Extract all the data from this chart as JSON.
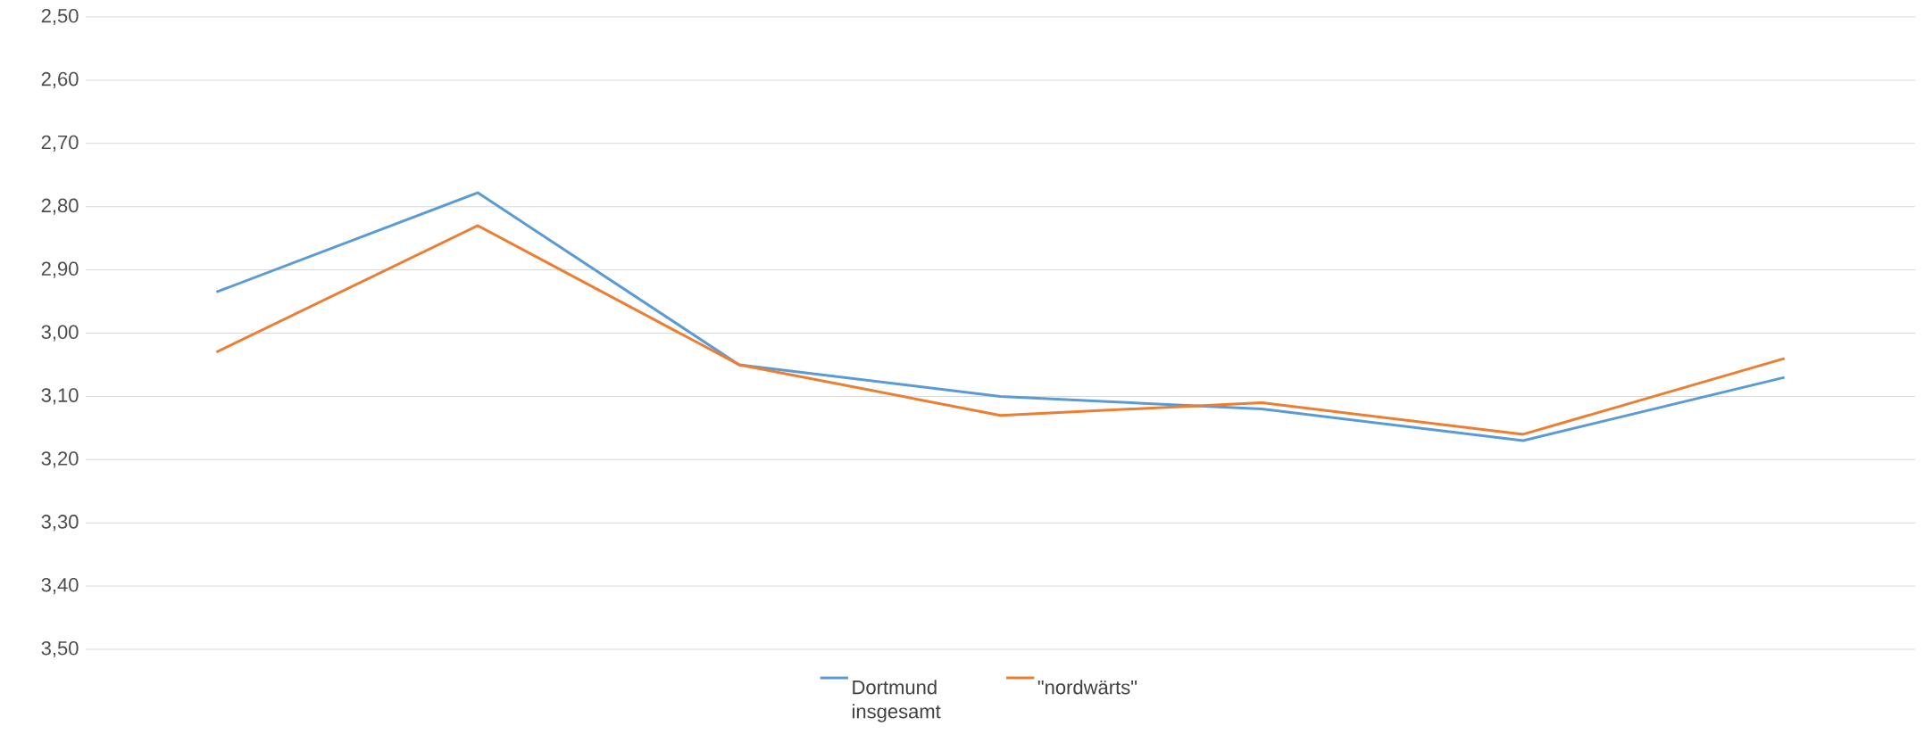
{
  "chart_data": {
    "type": "line",
    "categories": [
      null,
      null,
      null,
      null,
      null,
      null,
      null
    ],
    "series": [
      {
        "name": "Dortmund insgesamt",
        "color": "#5b9bd5",
        "values": [
          2.935,
          2.778,
          3.05,
          3.1,
          3.12,
          3.17,
          3.07
        ]
      },
      {
        "name": "\"nordwärts\"",
        "color": "#ed7d31",
        "values": [
          3.03,
          2.83,
          3.05,
          3.13,
          3.11,
          3.16,
          3.04
        ]
      }
    ],
    "ylim": [
      3.5,
      2.5
    ],
    "yticks": [
      {
        "value": 2.5,
        "label": "2,50"
      },
      {
        "value": 2.6,
        "label": "2,60"
      },
      {
        "value": 2.7,
        "label": "2,70"
      },
      {
        "value": 2.8,
        "label": "2,80"
      },
      {
        "value": 2.9,
        "label": "2,90"
      },
      {
        "value": 3.0,
        "label": "3,00"
      },
      {
        "value": 3.1,
        "label": "3,10"
      },
      {
        "value": 3.2,
        "label": "3,20"
      },
      {
        "value": 3.3,
        "label": "3,30"
      },
      {
        "value": 3.4,
        "label": "3,40"
      },
      {
        "value": 3.5,
        "label": "3,50"
      }
    ],
    "grid": "y",
    "legend": "bottom",
    "tick_labels": "y",
    "marker": "none",
    "line_style": "solid"
  }
}
